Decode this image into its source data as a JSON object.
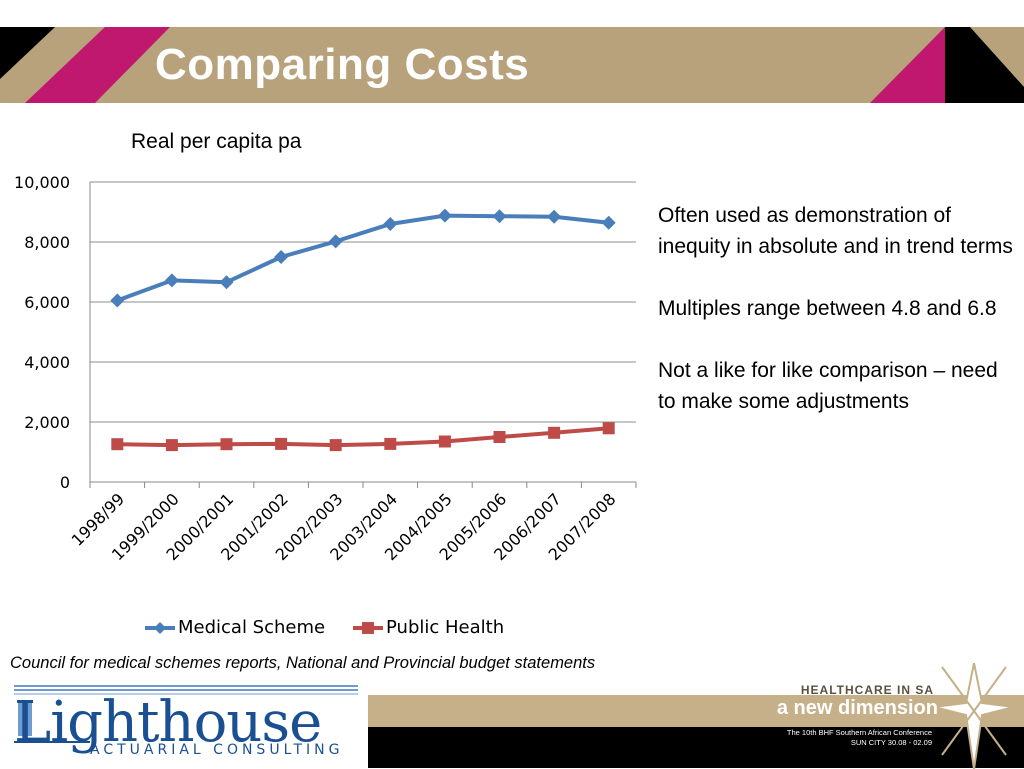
{
  "slide": {
    "title": "Comparing Costs",
    "notes": [
      "Often used as demonstration of inequity in absolute and in trend terms",
      "Multiples range between 4.8 and 6.8",
      "Not a like for like comparison – need to make some adjustments"
    ],
    "source": "Council for medical schemes reports, National and Provincial budget statements"
  },
  "logo": {
    "name": "Lighthouse",
    "subtitle": "Actuarial Consulting"
  },
  "banner": {
    "line1": "HEALTHCARE IN SA",
    "line2": "a new dimension",
    "line3": "The 10th BHF Southern African Conference",
    "line4": "SUN CITY 30.08 - 02.09"
  },
  "colors": {
    "header": "#b8a27c",
    "accent_magenta": "#c0186e",
    "series_medical": "#4a7ebb",
    "series_public": "#be4b48"
  },
  "chart_data": {
    "type": "line",
    "title": "Real per capita pa",
    "categories": [
      "1998/99",
      "1999/2000",
      "2000/2001",
      "2001/2002",
      "2002/2003",
      "2003/2004",
      "2004/2005",
      "2005/2006",
      "2006/2007",
      "2007/2008"
    ],
    "series": [
      {
        "name": "Medical Scheme",
        "values": [
          6050,
          6720,
          6660,
          7500,
          8020,
          8600,
          8880,
          8860,
          8840,
          8640
        ]
      },
      {
        "name": "Public Health",
        "values": [
          1260,
          1230,
          1260,
          1270,
          1230,
          1270,
          1350,
          1500,
          1640,
          1790
        ]
      }
    ],
    "yticks": [
      "0",
      "2,000",
      "4,000",
      "6,000",
      "8,000",
      "10,000"
    ],
    "ylim": [
      0,
      10000
    ],
    "grid": true,
    "legend": "bottom"
  }
}
